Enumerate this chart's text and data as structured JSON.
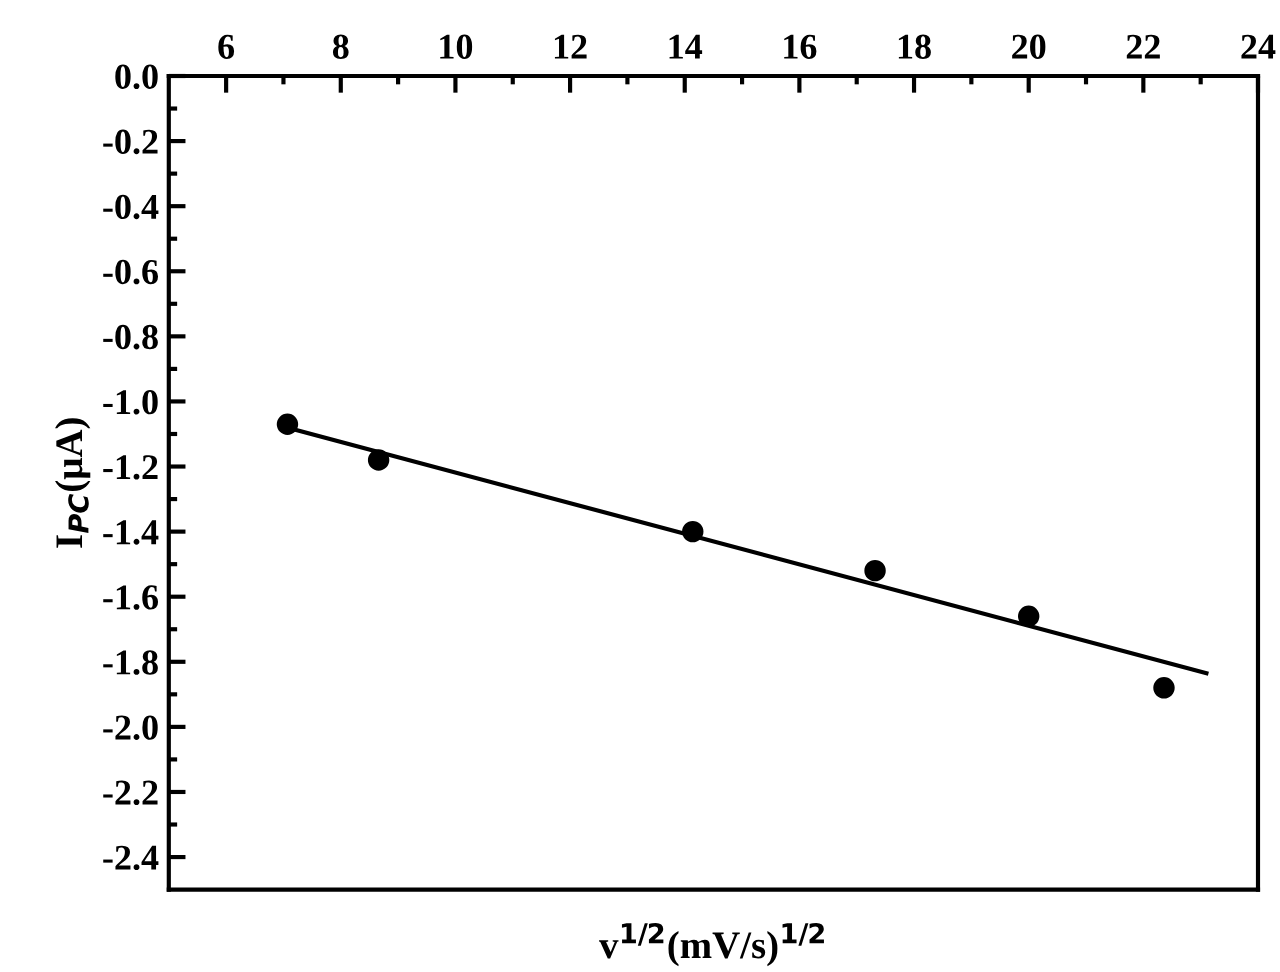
{
  "chart_data": {
    "type": "scatter",
    "xlabel": "v$^{1/2}$(mV/s)$^{1/2}$",
    "ylabel": "I$_{PC}$(μA)",
    "x": [
      7.07,
      8.66,
      14.14,
      17.32,
      20.0,
      22.36
    ],
    "series": [
      {
        "color": "#000000",
        "marker": "circle",
        "values": [
          -1.07,
          -1.18,
          -1.4,
          -1.52,
          -1.66,
          -1.88
        ]
      },
      {
        "type": "line",
        "color": "#000000",
        "x": [
          7.06,
          23.1
        ],
        "values": [
          -1.08,
          -1.835
        ]
      }
    ],
    "xlim": [
      5,
      24
    ],
    "xticks": [
      6,
      8,
      10,
      12,
      14,
      16,
      18,
      20,
      22,
      24
    ],
    "ylim": [
      -2.5,
      0
    ],
    "yticks": [
      {
        "value": 0,
        "label": "0.0"
      },
      {
        "value": -0.2,
        "label": "-0.2"
      },
      {
        "value": -0.4,
        "label": "-0.4"
      },
      {
        "value": -0.6,
        "label": "-0.6"
      },
      {
        "value": -0.8,
        "label": "-0.8"
      },
      {
        "value": -1.0,
        "label": "-1.0"
      },
      {
        "value": -1.2,
        "label": "-1.2"
      },
      {
        "value": -1.4,
        "label": "-1.4"
      },
      {
        "value": -1.6,
        "label": "-1.6"
      },
      {
        "value": -1.8,
        "label": "-1.8"
      },
      {
        "value": -2.0,
        "label": "-2.0"
      },
      {
        "value": -2.2,
        "label": "-2.2"
      },
      {
        "value": -2.4,
        "label": "-2.4"
      }
    ],
    "grid": false,
    "legend": false
  }
}
